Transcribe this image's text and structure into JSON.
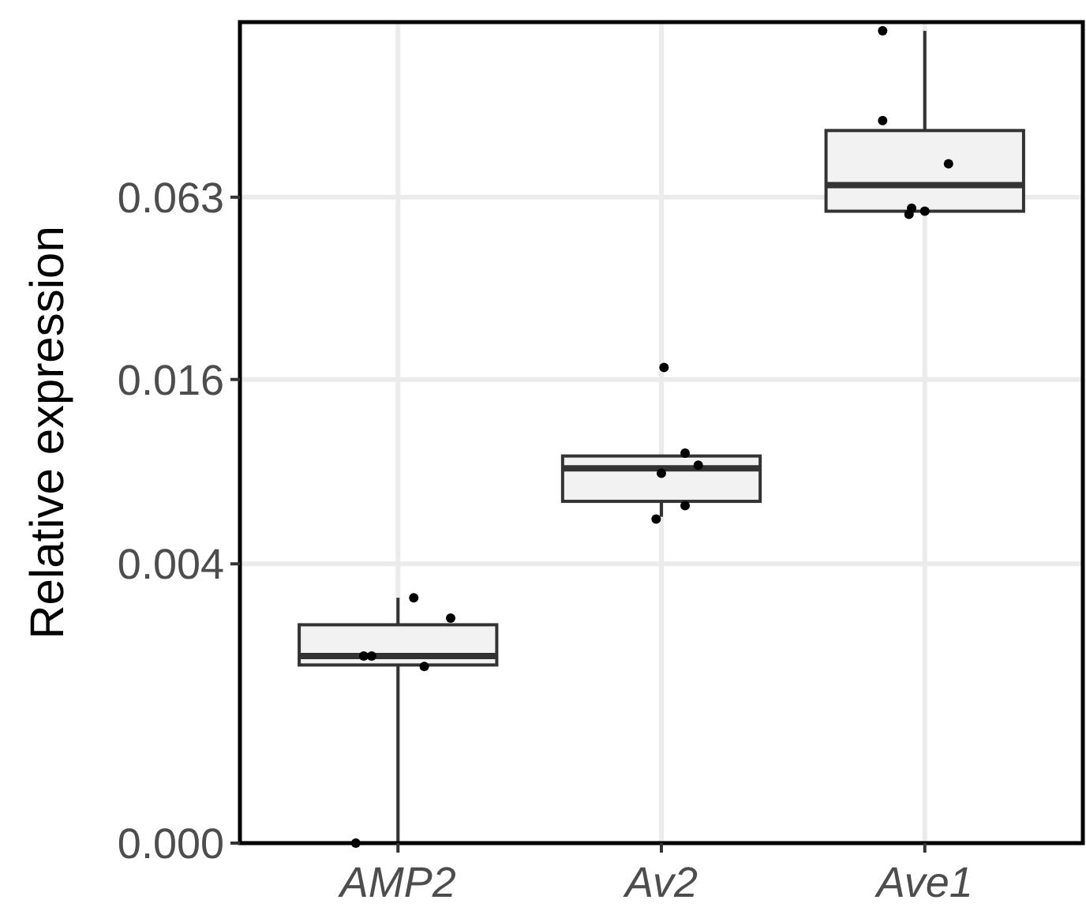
{
  "chart_data": {
    "type": "box",
    "categories": [
      "AMP2",
      "Av2",
      "Ave1"
    ],
    "ylabel": "Relative expression",
    "grid": true,
    "log": true,
    "ylim": [
      0.00049,
      0.235
    ],
    "yticks": [
      {
        "value": 0.00049,
        "label": "0.000"
      },
      0.004,
      0.016,
      0.063
    ],
    "boxes": [
      {
        "low": 0.00049,
        "q1": 0.00187,
        "median": 0.002,
        "q3": 0.00253,
        "high": 0.0031
      },
      {
        "low": 0.0057,
        "q1": 0.0064,
        "median": 0.0082,
        "q3": 0.009,
        "high": 0.009
      },
      {
        "low": 0.0567,
        "q1": 0.0567,
        "median": 0.069,
        "q3": 0.104,
        "high": 0.22
      }
    ],
    "series": [
      {
        "type": "scatter",
        "color": "#000000",
        "marker": "circle",
        "x": [
          "AMP2",
          "AMP2",
          "AMP2",
          "AMP2",
          "AMP2",
          "AMP2",
          "Av2",
          "Av2",
          "Av2",
          "Av2",
          "Av2",
          "Av2",
          "Ave1",
          "Ave1",
          "Ave1",
          "Ave1",
          "Ave1",
          "Ave1"
        ],
        "values": [
          0.0031,
          0.00266,
          0.002,
          0.002,
          0.00185,
          0.00049,
          0.0175,
          0.0092,
          0.0084,
          0.0079,
          0.0062,
          0.0056,
          0.22,
          0.112,
          0.081,
          0.058,
          0.0567,
          0.0554
        ]
      }
    ]
  }
}
